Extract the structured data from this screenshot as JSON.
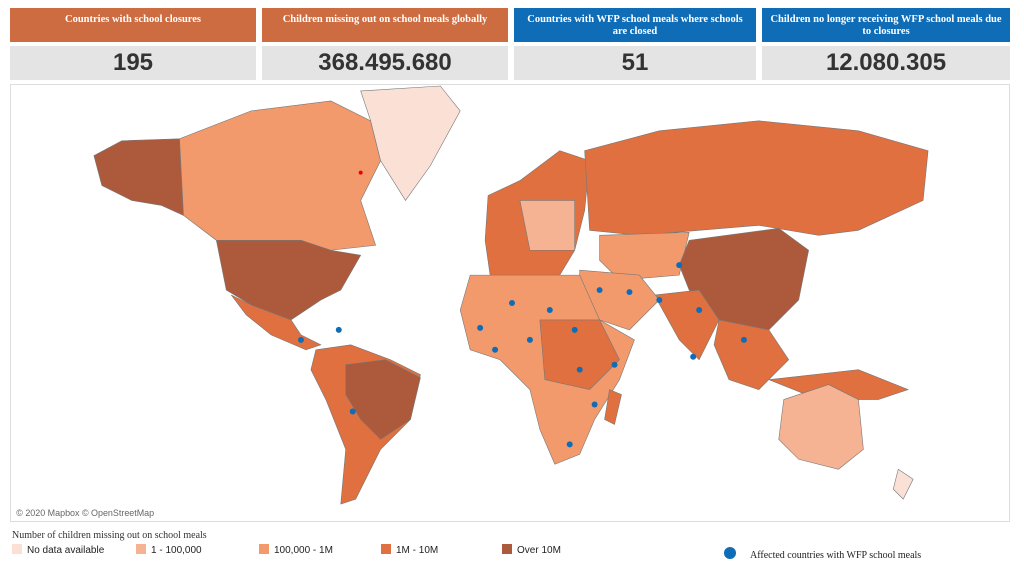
{
  "cards": [
    {
      "title": "Countries with school closures",
      "value": "195"
    },
    {
      "title": "Children missing out on school meals globally",
      "value": "368.495.680"
    },
    {
      "title": "Countries with WFP school meals where schools are closed",
      "value": "51"
    },
    {
      "title": "Children no longer receiving WFP school meals due to closures",
      "value": "12.080.305"
    }
  ],
  "map": {
    "attribution": "© 2020 Mapbox © OpenStreetMap"
  },
  "legend": {
    "title": "Number of children missing out on school meals",
    "items": [
      {
        "label": "No data available",
        "color": "#fbe0d5"
      },
      {
        "label": "1 - 100,000",
        "color": "#f6b394"
      },
      {
        "label": "100,000 - 1M",
        "color": "#f29a6c"
      },
      {
        "label": "1M - 10M",
        "color": "#e0703f"
      },
      {
        "label": "Over 10M",
        "color": "#ad5a3c"
      }
    ],
    "dot_label": "Affected countries with WFP school meals",
    "dot_color": "#0f6cb6"
  }
}
